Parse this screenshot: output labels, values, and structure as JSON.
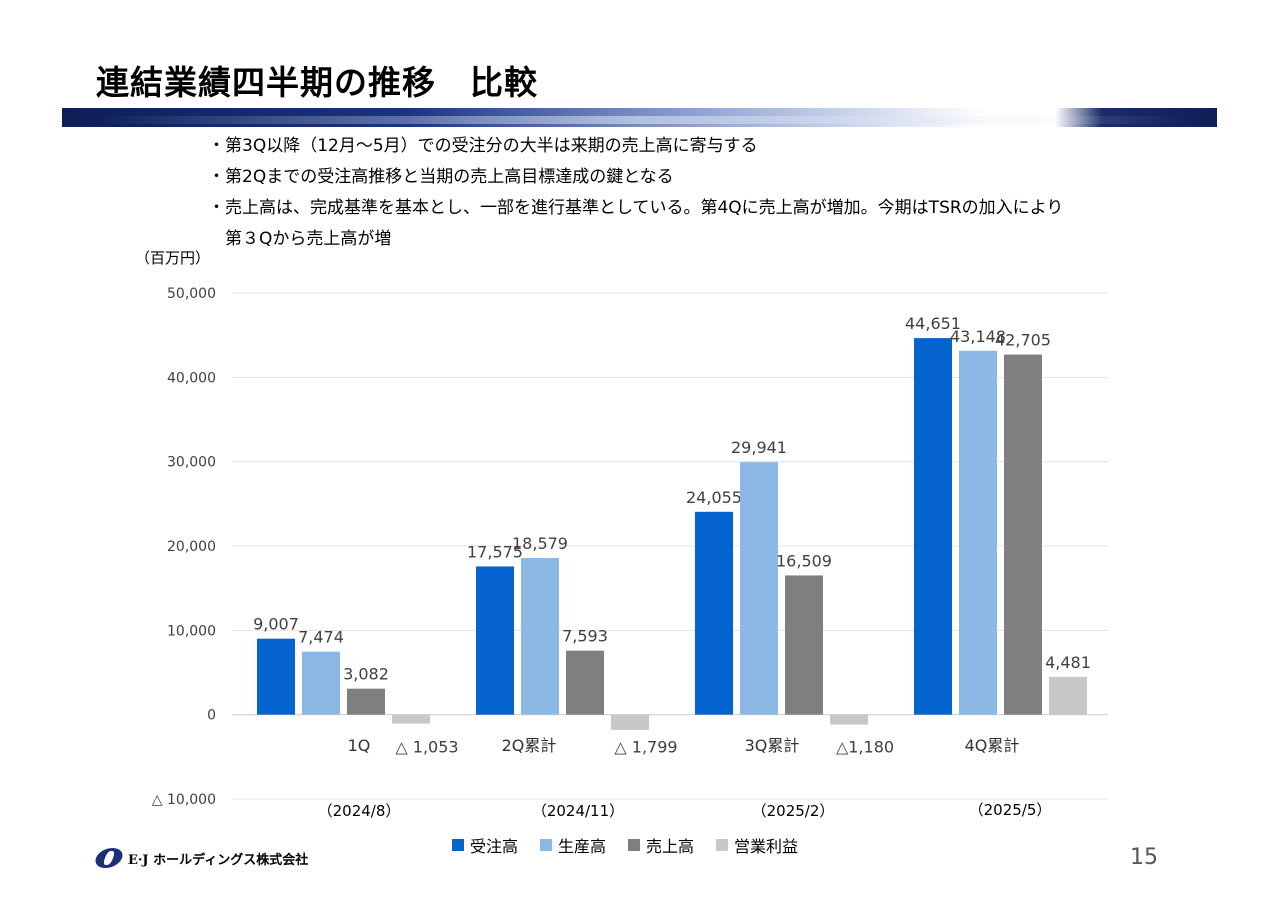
{
  "title": "連結業績四半期の推移　比較",
  "bullets": [
    "・第3Q以降（12月～5月）での受注分の大半は来期の売上高に寄与する",
    "・第2Qまでの受注高推移と当期の売上高目標達成の鍵となる",
    "・売上高は、完成基準を基本とし、一部を進行基準としている。第4Qに売上高が増加。今期はTSRの加入により",
    "　第３Qから売上高が増"
  ],
  "unit_label": "（百万円）",
  "page_number": "15",
  "company_name": "E·J ホールディングス株式会社",
  "chart_data": {
    "type": "bar",
    "categories": [
      "1Q",
      "2Q累計",
      "3Q累計",
      "4Q累計"
    ],
    "periods": [
      "（2024/8）",
      "（2024/11）",
      "（2025/2）",
      "（2025/5）"
    ],
    "series": [
      {
        "name": "受注高",
        "color": "#0563cf",
        "values": [
          9007,
          17575,
          24055,
          44651
        ],
        "labels": [
          "9,007",
          "17,575",
          "24,055",
          "44,651"
        ]
      },
      {
        "name": "生産高",
        "color": "#8cb8e6",
        "values": [
          7474,
          18579,
          29941,
          43148
        ],
        "labels": [
          "7,474",
          "18,579",
          "29,941",
          "43,148"
        ]
      },
      {
        "name": "売上高",
        "color": "#7f7f7f",
        "values": [
          3082,
          7593,
          16509,
          42705
        ],
        "labels": [
          "3,082",
          "7,593",
          "16,509",
          "42,705"
        ]
      },
      {
        "name": "営業利益",
        "color": "#c8c8c8",
        "values": [
          -1053,
          -1799,
          -1180,
          4481
        ],
        "labels": [
          "△ 1,053",
          "△ 1,799",
          "△1,180",
          "4,481"
        ]
      }
    ],
    "y_ticks": [
      {
        "value": 50000,
        "label": "50,000"
      },
      {
        "value": 40000,
        "label": "40,000"
      },
      {
        "value": 30000,
        "label": "30,000"
      },
      {
        "value": 20000,
        "label": "20,000"
      },
      {
        "value": 10000,
        "label": "10,000"
      },
      {
        "value": 0,
        "label": "0"
      },
      {
        "value": -10000,
        "label": "△ 10,000"
      }
    ],
    "ylim": [
      -10000,
      50000
    ],
    "grid": true,
    "legend_position": "bottom"
  }
}
